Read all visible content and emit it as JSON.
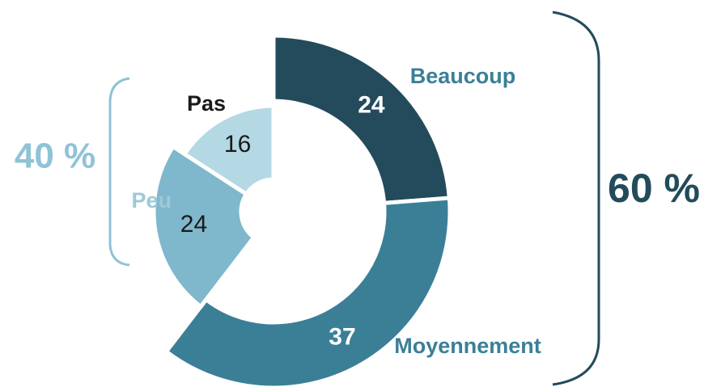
{
  "chart_data": {
    "type": "donut",
    "categories": [
      "Beaucoup",
      "Moyennement",
      "Peu",
      "Pas"
    ],
    "values": [
      24,
      37,
      24,
      16
    ],
    "colors": [
      "#234b5c",
      "#3b7f97",
      "#7fb8cc",
      "#b4d8e4"
    ],
    "annotations": [
      "60 %",
      "40 %"
    ]
  }
}
